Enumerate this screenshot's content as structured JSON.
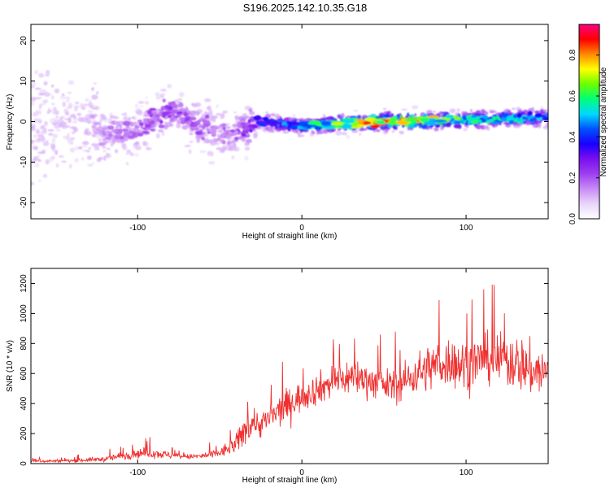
{
  "title": "S196.2025.142.10.35.G18",
  "colors": {
    "snr_line": "#f03030",
    "colormap": [
      "#ffffff",
      "#e9d6fb",
      "#c88cf5",
      "#9f3ff0",
      "#7a0ff0",
      "#1a00ff",
      "#0050ff",
      "#00d8ff",
      "#00ff7a",
      "#6aff00",
      "#ffff00",
      "#ff8a00",
      "#ff0000",
      "#ff0080"
    ]
  },
  "chart_data": [
    {
      "type": "heatmap",
      "title": "",
      "xlabel": "Height of straight line (km)",
      "ylabel": "Frequency (Hz)",
      "xlim": [
        -165,
        150
      ],
      "ylim": [
        -24,
        24
      ],
      "xticks": [
        -100,
        0,
        100
      ],
      "yticks": [
        -20,
        -10,
        0,
        10,
        20
      ],
      "colorbar": {
        "label": "Normalized spectral amplitude",
        "range": [
          0,
          0.95
        ],
        "ticks": [
          0.0,
          0.2,
          0.4,
          0.6,
          0.8
        ]
      },
      "ridge": {
        "description_points_x": [
          -165,
          -120,
          -100,
          -80,
          -60,
          -40,
          -25,
          0,
          50,
          100,
          150
        ],
        "frequency_y": [
          0,
          -3,
          -2,
          3,
          -2,
          -3,
          0,
          -1,
          0,
          0.5,
          1
        ],
        "amplitude": [
          0.1,
          0.15,
          0.2,
          0.25,
          0.2,
          0.2,
          0.4,
          0.5,
          0.9,
          0.6,
          0.5
        ]
      }
    },
    {
      "type": "line",
      "title": "",
      "xlabel": "Height of straight line (km)",
      "ylabel": "SNR (10 * v/v)",
      "xlim": [
        -165,
        150
      ],
      "ylim": [
        0,
        1300
      ],
      "xticks": [
        -100,
        0,
        100
      ],
      "yticks": [
        0,
        200,
        400,
        600,
        800,
        1000,
        1200
      ],
      "envelope": {
        "x": [
          -165,
          -140,
          -120,
          -110,
          -100,
          -90,
          -80,
          -70,
          -60,
          -50,
          -40,
          -35,
          -30,
          -25,
          -20,
          -10,
          0,
          10,
          20,
          30,
          40,
          50,
          60,
          70,
          80,
          90,
          100,
          110,
          120,
          130,
          140,
          150
        ],
        "mean": [
          15,
          20,
          30,
          50,
          70,
          70,
          55,
          45,
          50,
          70,
          130,
          220,
          280,
          260,
          300,
          380,
          450,
          500,
          550,
          580,
          560,
          520,
          530,
          600,
          650,
          680,
          650,
          700,
          690,
          680,
          620,
          600
        ],
        "spread": [
          15,
          20,
          30,
          50,
          60,
          60,
          40,
          30,
          40,
          60,
          120,
          200,
          160,
          160,
          180,
          200,
          180,
          190,
          210,
          220,
          200,
          190,
          210,
          250,
          290,
          300,
          320,
          280,
          320,
          340,
          320,
          300
        ]
      }
    }
  ]
}
